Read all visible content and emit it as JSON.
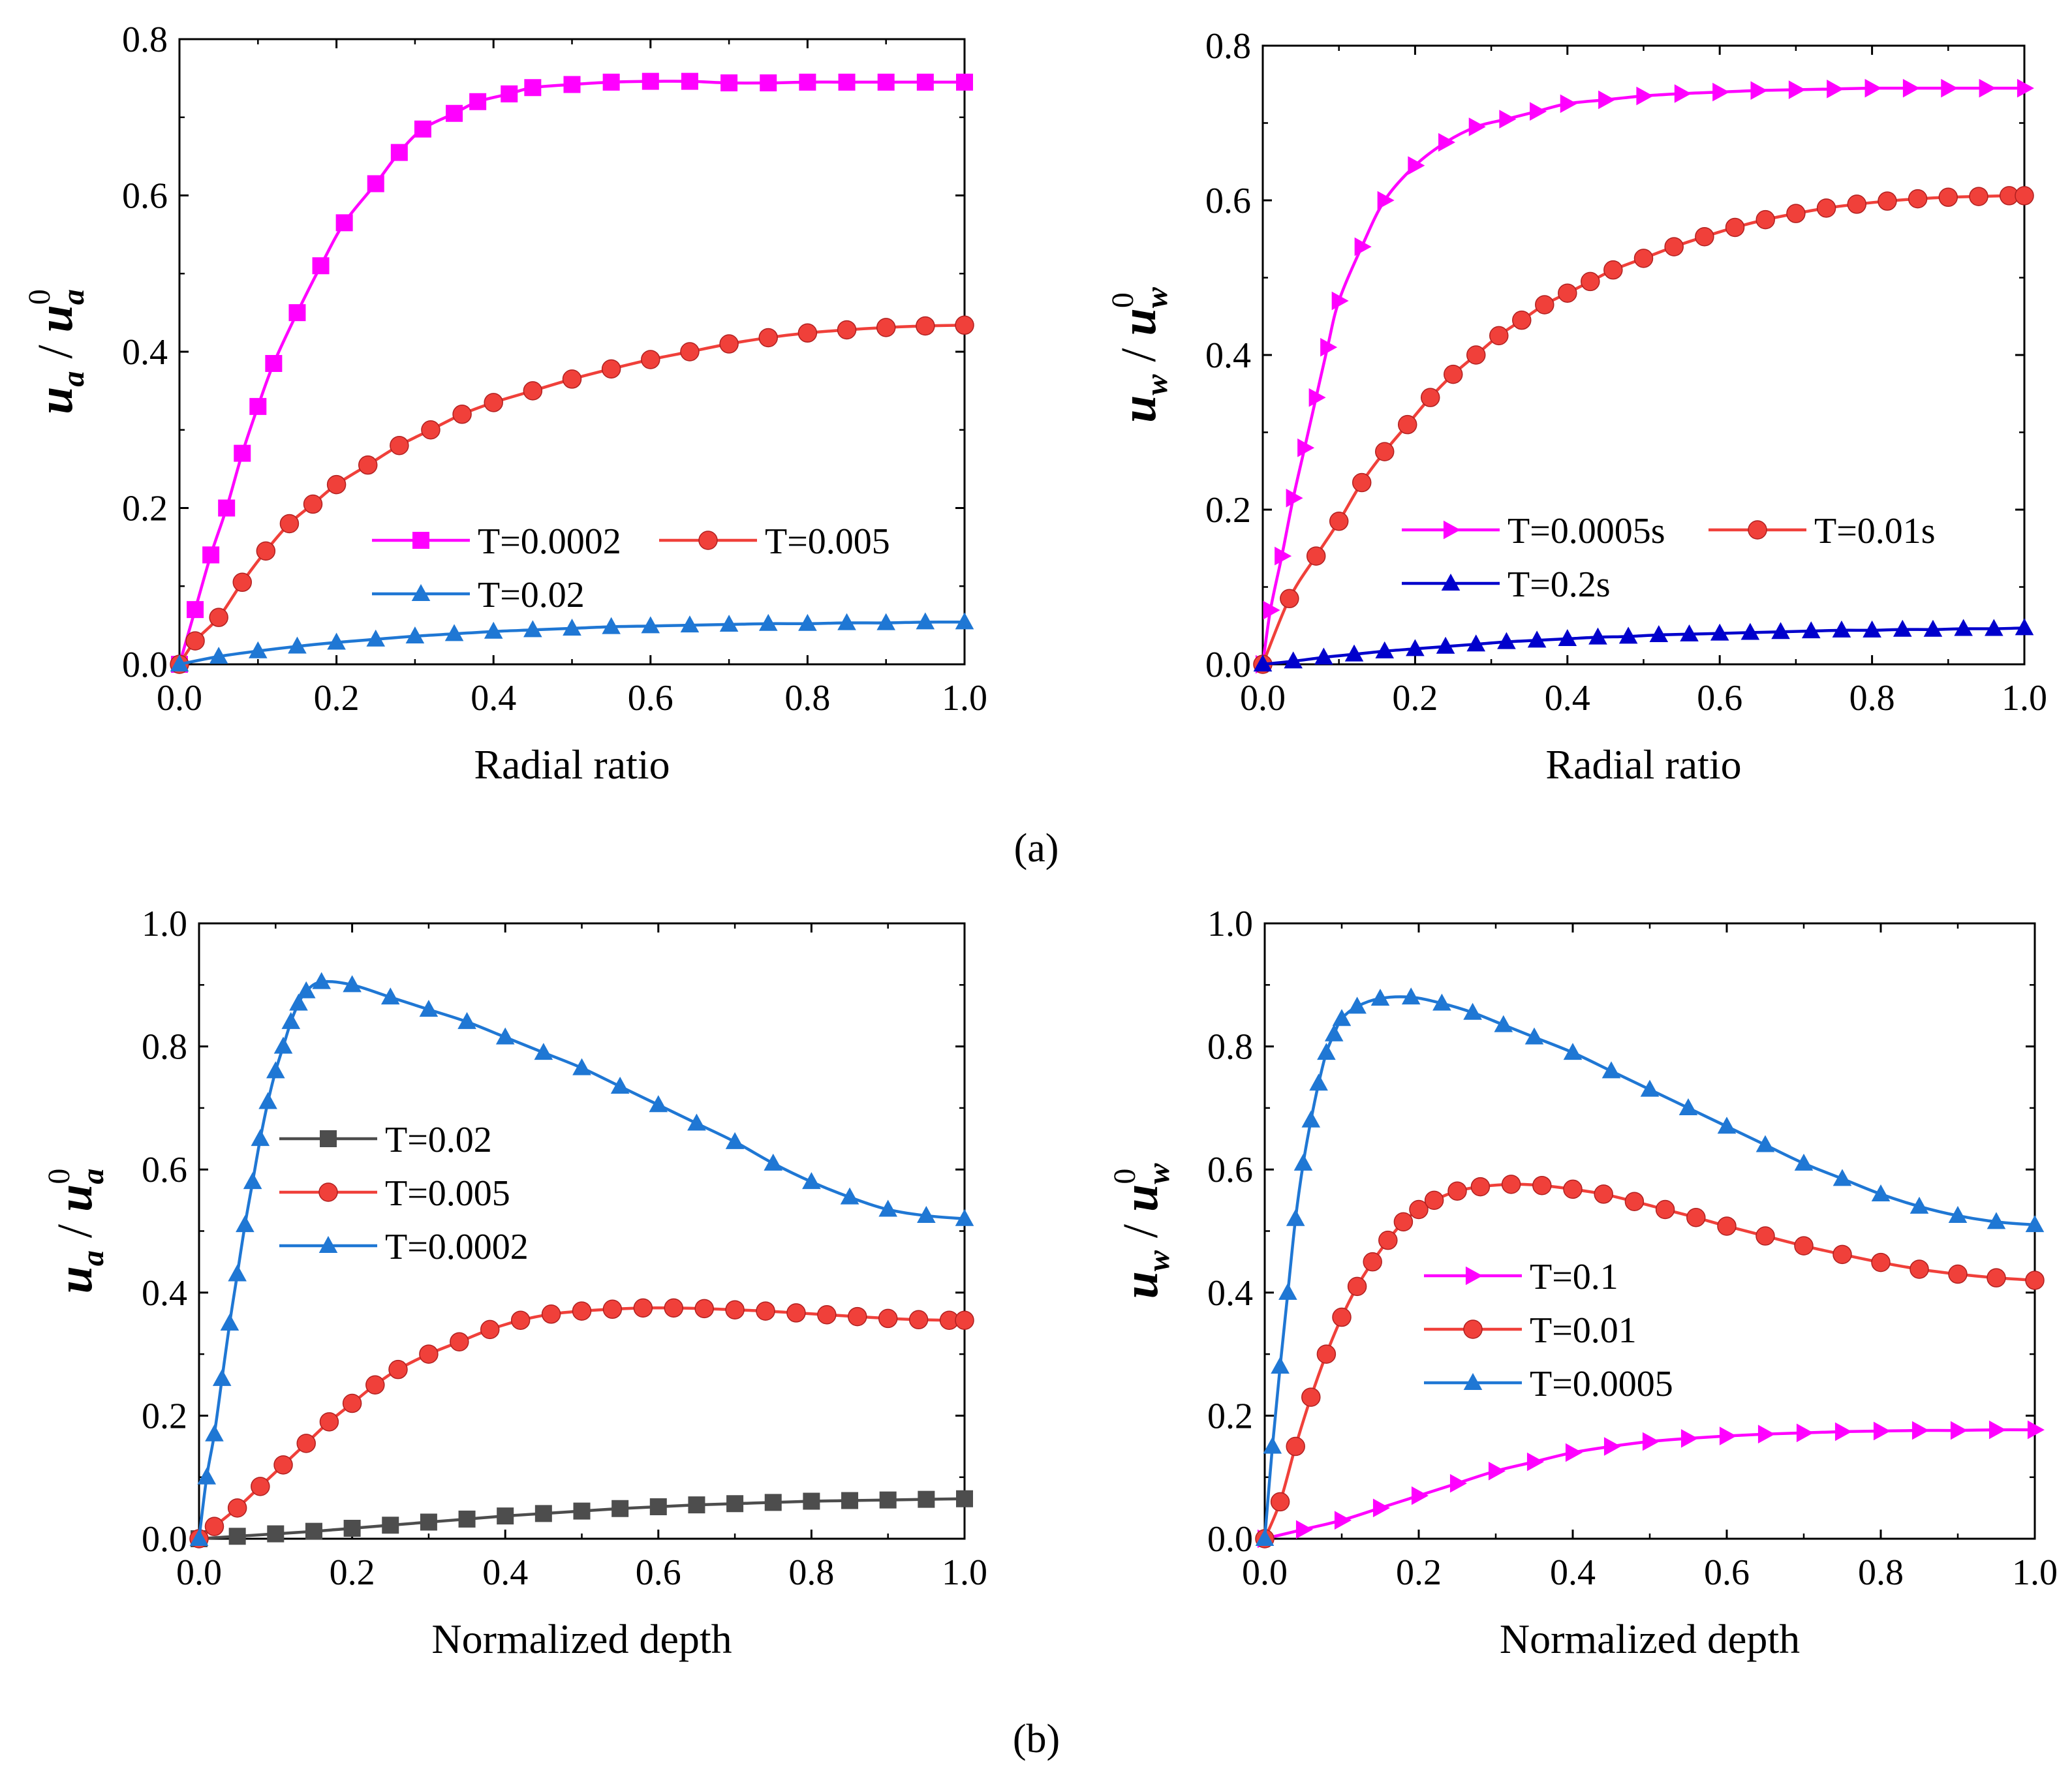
{
  "figure": {
    "panel_labels": [
      "(a)",
      "(b)"
    ],
    "colors": {
      "magenta": "#ff00ff",
      "red": "#f0403a",
      "blue": "#1f77d4",
      "navy": "#0000cc",
      "gray": "#4d4d4d"
    }
  },
  "chart_data": [
    {
      "id": "a-left",
      "type": "line",
      "xlabel": "Radial ratio",
      "ylabel": {
        "base": "u",
        "sub": "a",
        "den_base": "u",
        "den_sub": "a",
        "den_sup": "0"
      },
      "xlim": [
        0,
        1.0
      ],
      "ylim": [
        0,
        0.8
      ],
      "xticks": [
        "0.0",
        "0.2",
        "0.4",
        "0.6",
        "0.8",
        "1.0"
      ],
      "yticks": [
        "0.0",
        "0.2",
        "0.4",
        "0.6",
        "0.8"
      ],
      "legend": {
        "position": "lower-right",
        "rows": [
          [
            0,
            1
          ],
          [
            2
          ]
        ]
      },
      "series": [
        {
          "name": "T=0.0002",
          "color": "#ff00ff",
          "marker": "square",
          "x": [
            0,
            0.02,
            0.04,
            0.06,
            0.08,
            0.1,
            0.12,
            0.15,
            0.18,
            0.21,
            0.25,
            0.28,
            0.31,
            0.35,
            0.38,
            0.42,
            0.45,
            0.5,
            0.55,
            0.6,
            0.65,
            0.7,
            0.75,
            0.8,
            0.85,
            0.9,
            0.95,
            1.0
          ],
          "y": [
            0,
            0.07,
            0.14,
            0.2,
            0.27,
            0.33,
            0.385,
            0.45,
            0.51,
            0.565,
            0.615,
            0.655,
            0.685,
            0.705,
            0.72,
            0.73,
            0.738,
            0.742,
            0.745,
            0.746,
            0.746,
            0.744,
            0.744,
            0.745,
            0.745,
            0.745,
            0.745,
            0.745
          ]
        },
        {
          "name": "T=0.005",
          "color": "#f0403a",
          "marker": "circle",
          "x": [
            0,
            0.02,
            0.05,
            0.08,
            0.11,
            0.14,
            0.17,
            0.2,
            0.24,
            0.28,
            0.32,
            0.36,
            0.4,
            0.45,
            0.5,
            0.55,
            0.6,
            0.65,
            0.7,
            0.75,
            0.8,
            0.85,
            0.9,
            0.95,
            1.0
          ],
          "y": [
            0,
            0.03,
            0.06,
            0.105,
            0.145,
            0.18,
            0.205,
            0.23,
            0.255,
            0.28,
            0.3,
            0.32,
            0.335,
            0.35,
            0.365,
            0.378,
            0.39,
            0.4,
            0.41,
            0.418,
            0.424,
            0.428,
            0.431,
            0.433,
            0.434
          ]
        },
        {
          "name": "T=0.02",
          "color": "#1f77d4",
          "marker": "triangle",
          "x": [
            0,
            0.05,
            0.1,
            0.15,
            0.2,
            0.25,
            0.3,
            0.35,
            0.4,
            0.45,
            0.5,
            0.55,
            0.6,
            0.65,
            0.7,
            0.75,
            0.8,
            0.85,
            0.9,
            0.95,
            1.0
          ],
          "y": [
            0,
            0.01,
            0.017,
            0.023,
            0.028,
            0.032,
            0.036,
            0.039,
            0.042,
            0.044,
            0.046,
            0.048,
            0.049,
            0.05,
            0.051,
            0.052,
            0.052,
            0.053,
            0.053,
            0.054,
            0.054
          ]
        }
      ]
    },
    {
      "id": "a-right",
      "type": "line",
      "xlabel": "Radial ratio",
      "ylabel": {
        "base": "u",
        "sub": "w",
        "den_base": "u",
        "den_sub": "w",
        "den_sup": "0"
      },
      "xlim": [
        0,
        1.0
      ],
      "ylim": [
        0,
        0.8
      ],
      "xticks": [
        "0.0",
        "0.2",
        "0.4",
        "0.6",
        "0.8",
        "1.0"
      ],
      "yticks": [
        "0.0",
        "0.2",
        "0.4",
        "0.6",
        "0.8"
      ],
      "legend": {
        "position": "lower-right",
        "rows": [
          [
            0,
            1
          ],
          [
            2
          ]
        ]
      },
      "series": [
        {
          "name": "T=0.0005s",
          "color": "#ff00ff",
          "marker": "triangle-right",
          "x": [
            0,
            0.01,
            0.025,
            0.04,
            0.055,
            0.07,
            0.085,
            0.1,
            0.13,
            0.16,
            0.2,
            0.24,
            0.28,
            0.32,
            0.36,
            0.4,
            0.45,
            0.5,
            0.55,
            0.6,
            0.65,
            0.7,
            0.75,
            0.8,
            0.85,
            0.9,
            0.95,
            1.0
          ],
          "y": [
            0,
            0.07,
            0.14,
            0.215,
            0.28,
            0.345,
            0.41,
            0.47,
            0.54,
            0.6,
            0.645,
            0.675,
            0.695,
            0.705,
            0.715,
            0.725,
            0.73,
            0.735,
            0.738,
            0.74,
            0.742,
            0.743,
            0.744,
            0.745,
            0.745,
            0.745,
            0.745,
            0.745
          ]
        },
        {
          "name": "T=0.01s",
          "color": "#f0403a",
          "marker": "circle",
          "x": [
            0,
            0.035,
            0.07,
            0.1,
            0.13,
            0.16,
            0.19,
            0.22,
            0.25,
            0.28,
            0.31,
            0.34,
            0.37,
            0.4,
            0.43,
            0.46,
            0.5,
            0.54,
            0.58,
            0.62,
            0.66,
            0.7,
            0.74,
            0.78,
            0.82,
            0.86,
            0.9,
            0.94,
            0.98,
            1.0
          ],
          "y": [
            0,
            0.085,
            0.14,
            0.185,
            0.235,
            0.275,
            0.31,
            0.345,
            0.375,
            0.4,
            0.425,
            0.445,
            0.465,
            0.48,
            0.495,
            0.51,
            0.525,
            0.54,
            0.553,
            0.565,
            0.575,
            0.583,
            0.59,
            0.595,
            0.599,
            0.602,
            0.604,
            0.605,
            0.606,
            0.606
          ]
        },
        {
          "name": "T=0.2s",
          "color": "#0000cc",
          "marker": "triangle",
          "x": [
            0,
            0.04,
            0.08,
            0.12,
            0.16,
            0.2,
            0.24,
            0.28,
            0.32,
            0.36,
            0.4,
            0.44,
            0.48,
            0.52,
            0.56,
            0.6,
            0.64,
            0.68,
            0.72,
            0.76,
            0.8,
            0.84,
            0.88,
            0.92,
            0.96,
            1.0
          ],
          "y": [
            0,
            0.004,
            0.009,
            0.013,
            0.017,
            0.02,
            0.023,
            0.026,
            0.029,
            0.031,
            0.033,
            0.035,
            0.036,
            0.038,
            0.039,
            0.04,
            0.041,
            0.042,
            0.043,
            0.044,
            0.044,
            0.045,
            0.045,
            0.046,
            0.046,
            0.047
          ]
        }
      ]
    },
    {
      "id": "b-left",
      "type": "line",
      "xlabel": "Normalized depth",
      "ylabel": {
        "base": "u",
        "sub": "a",
        "den_base": "u",
        "den_sub": "a",
        "den_sup": "0"
      },
      "xlim": [
        0,
        1.0
      ],
      "ylim": [
        0,
        1.0
      ],
      "xticks": [
        "0.0",
        "0.2",
        "0.4",
        "0.6",
        "0.8",
        "1.0"
      ],
      "yticks": [
        "0.0",
        "0.2",
        "0.4",
        "0.6",
        "0.8",
        "1.0"
      ],
      "legend": {
        "position": "middle-left",
        "rows": [
          [
            0
          ],
          [
            1
          ],
          [
            2
          ]
        ]
      },
      "series": [
        {
          "name": "T=0.02",
          "color": "#4d4d4d",
          "marker": "square",
          "x": [
            0,
            0.05,
            0.1,
            0.15,
            0.2,
            0.25,
            0.3,
            0.35,
            0.4,
            0.45,
            0.5,
            0.55,
            0.6,
            0.65,
            0.7,
            0.75,
            0.8,
            0.85,
            0.9,
            0.95,
            1.0
          ],
          "y": [
            0,
            0.004,
            0.008,
            0.012,
            0.017,
            0.022,
            0.027,
            0.032,
            0.037,
            0.041,
            0.045,
            0.049,
            0.052,
            0.055,
            0.057,
            0.059,
            0.061,
            0.062,
            0.063,
            0.064,
            0.065
          ]
        },
        {
          "name": "T=0.005",
          "color": "#f0403a",
          "marker": "circle",
          "x": [
            0,
            0.02,
            0.05,
            0.08,
            0.11,
            0.14,
            0.17,
            0.2,
            0.23,
            0.26,
            0.3,
            0.34,
            0.38,
            0.42,
            0.46,
            0.5,
            0.54,
            0.58,
            0.62,
            0.66,
            0.7,
            0.74,
            0.78,
            0.82,
            0.86,
            0.9,
            0.94,
            0.98,
            1.0
          ],
          "y": [
            0,
            0.02,
            0.05,
            0.085,
            0.12,
            0.155,
            0.19,
            0.22,
            0.25,
            0.275,
            0.3,
            0.32,
            0.34,
            0.355,
            0.365,
            0.37,
            0.373,
            0.375,
            0.375,
            0.374,
            0.372,
            0.37,
            0.367,
            0.364,
            0.361,
            0.358,
            0.356,
            0.355,
            0.355
          ]
        },
        {
          "name": "T=0.0002",
          "color": "#1f77d4",
          "marker": "triangle",
          "x": [
            0,
            0.01,
            0.02,
            0.03,
            0.04,
            0.05,
            0.06,
            0.07,
            0.08,
            0.09,
            0.1,
            0.11,
            0.12,
            0.13,
            0.14,
            0.16,
            0.2,
            0.25,
            0.3,
            0.35,
            0.4,
            0.45,
            0.5,
            0.55,
            0.6,
            0.65,
            0.7,
            0.75,
            0.8,
            0.85,
            0.9,
            0.95,
            1.0
          ],
          "y": [
            0,
            0.1,
            0.17,
            0.26,
            0.35,
            0.43,
            0.51,
            0.58,
            0.65,
            0.71,
            0.76,
            0.8,
            0.84,
            0.87,
            0.89,
            0.905,
            0.9,
            0.88,
            0.86,
            0.84,
            0.815,
            0.79,
            0.765,
            0.735,
            0.705,
            0.675,
            0.645,
            0.61,
            0.58,
            0.555,
            0.535,
            0.525,
            0.52
          ]
        }
      ]
    },
    {
      "id": "b-right",
      "type": "line",
      "xlabel": "Normalized depth",
      "ylabel": {
        "base": "u",
        "sub": "w",
        "den_base": "u",
        "den_sub": "w",
        "den_sup": "0"
      },
      "xlim": [
        0,
        1.0
      ],
      "ylim": [
        0,
        1.0
      ],
      "xticks": [
        "0.0",
        "0.2",
        "0.4",
        "0.6",
        "0.8",
        "1.0"
      ],
      "yticks": [
        "0.0",
        "0.2",
        "0.4",
        "0.6",
        "0.8",
        "1.0"
      ],
      "legend": {
        "position": "middle-left",
        "rows": [
          [
            0
          ],
          [
            1
          ],
          [
            2
          ]
        ]
      },
      "series": [
        {
          "name": "T=0.1",
          "color": "#ff00ff",
          "marker": "triangle-right",
          "x": [
            0,
            0.05,
            0.1,
            0.15,
            0.2,
            0.25,
            0.3,
            0.35,
            0.4,
            0.45,
            0.5,
            0.55,
            0.6,
            0.65,
            0.7,
            0.75,
            0.8,
            0.85,
            0.9,
            0.95,
            1.0
          ],
          "y": [
            0,
            0.015,
            0.03,
            0.05,
            0.07,
            0.09,
            0.11,
            0.125,
            0.14,
            0.15,
            0.158,
            0.163,
            0.167,
            0.17,
            0.172,
            0.174,
            0.175,
            0.176,
            0.176,
            0.177,
            0.177
          ]
        },
        {
          "name": "T=0.01",
          "color": "#f0403a",
          "marker": "circle",
          "x": [
            0,
            0.02,
            0.04,
            0.06,
            0.08,
            0.1,
            0.12,
            0.14,
            0.16,
            0.18,
            0.2,
            0.22,
            0.25,
            0.28,
            0.32,
            0.36,
            0.4,
            0.44,
            0.48,
            0.52,
            0.56,
            0.6,
            0.65,
            0.7,
            0.75,
            0.8,
            0.85,
            0.9,
            0.95,
            1.0
          ],
          "y": [
            0,
            0.06,
            0.15,
            0.23,
            0.3,
            0.36,
            0.41,
            0.45,
            0.485,
            0.515,
            0.535,
            0.55,
            0.565,
            0.572,
            0.576,
            0.574,
            0.568,
            0.56,
            0.548,
            0.535,
            0.522,
            0.508,
            0.492,
            0.476,
            0.462,
            0.449,
            0.438,
            0.43,
            0.424,
            0.42
          ]
        },
        {
          "name": "T=0.0005",
          "color": "#1f77d4",
          "marker": "triangle",
          "x": [
            0,
            0.01,
            0.02,
            0.03,
            0.04,
            0.05,
            0.06,
            0.07,
            0.08,
            0.09,
            0.1,
            0.12,
            0.15,
            0.19,
            0.23,
            0.27,
            0.31,
            0.35,
            0.4,
            0.45,
            0.5,
            0.55,
            0.6,
            0.65,
            0.7,
            0.75,
            0.8,
            0.85,
            0.9,
            0.95,
            1.0
          ],
          "y": [
            0,
            0.15,
            0.28,
            0.4,
            0.52,
            0.61,
            0.68,
            0.74,
            0.79,
            0.82,
            0.845,
            0.865,
            0.878,
            0.88,
            0.87,
            0.855,
            0.835,
            0.815,
            0.79,
            0.76,
            0.73,
            0.7,
            0.67,
            0.64,
            0.61,
            0.585,
            0.56,
            0.54,
            0.525,
            0.515,
            0.51
          ]
        }
      ]
    }
  ]
}
